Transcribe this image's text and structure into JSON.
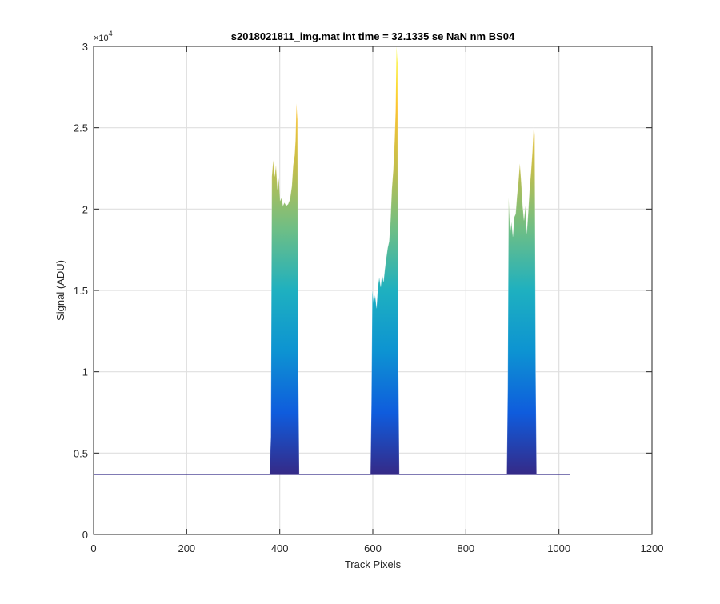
{
  "chart_data": {
    "type": "area",
    "title": "s2018021811_img.mat int time = 32.1335 se  NaN nm BS04",
    "xlabel": "Track Pixels",
    "ylabel": "Signal (ADU)",
    "y_exponent_label": "×10",
    "y_exponent_power": "4",
    "xlim": [
      0,
      1200
    ],
    "ylim": [
      0,
      3
    ],
    "xticks": [
      0,
      200,
      400,
      600,
      800,
      1000,
      1200
    ],
    "xtick_labels": [
      "0",
      "200",
      "400",
      "600",
      "800",
      "1000",
      "1200"
    ],
    "yticks": [
      0,
      0.5,
      1,
      1.5,
      2,
      2.5,
      3
    ],
    "ytick_labels": [
      "0",
      "0.5",
      "1",
      "1.5",
      "2",
      "2.5",
      "3"
    ],
    "grid": true,
    "baseline": 0.37,
    "x_extent": [
      1,
      1024
    ],
    "colormap": [
      "#352a87",
      "#0f5cdd",
      "#0d93d2",
      "#1eb0c0",
      "#6dbe86",
      "#c2be4c",
      "#fcc330",
      "#f9fb0e"
    ],
    "series": [
      {
        "values": [
          [
            378,
            0.37
          ],
          [
            381,
            0.6
          ],
          [
            383,
            2.2
          ],
          [
            386,
            2.3
          ],
          [
            389,
            2.2
          ],
          [
            392,
            2.27
          ],
          [
            395,
            2.12
          ],
          [
            398,
            2.19
          ],
          [
            401,
            2.05
          ],
          [
            404,
            2.07
          ],
          [
            407,
            2.02
          ],
          [
            410,
            2.04
          ],
          [
            414,
            2.02
          ],
          [
            418,
            2.03
          ],
          [
            422,
            2.06
          ],
          [
            426,
            2.14
          ],
          [
            429,
            2.27
          ],
          [
            432,
            2.33
          ],
          [
            434,
            2.42
          ],
          [
            436,
            2.65
          ],
          [
            438,
            2.55
          ],
          [
            440,
            1.0
          ],
          [
            442,
            0.37
          ]
        ]
      },
      {
        "values": [
          [
            595,
            0.37
          ],
          [
            597,
            0.8
          ],
          [
            599,
            1.5
          ],
          [
            602,
            1.42
          ],
          [
            605,
            1.47
          ],
          [
            608,
            1.39
          ],
          [
            611,
            1.52
          ],
          [
            614,
            1.58
          ],
          [
            617,
            1.52
          ],
          [
            620,
            1.6
          ],
          [
            623,
            1.55
          ],
          [
            626,
            1.63
          ],
          [
            629,
            1.7
          ],
          [
            632,
            1.76
          ],
          [
            635,
            1.8
          ],
          [
            638,
            1.92
          ],
          [
            641,
            2.12
          ],
          [
            644,
            2.24
          ],
          [
            647,
            2.42
          ],
          [
            649,
            2.6
          ],
          [
            651,
            3.0
          ],
          [
            653,
            2.9
          ],
          [
            655,
            1.0
          ],
          [
            657,
            0.37
          ]
        ]
      },
      {
        "values": [
          [
            888,
            0.37
          ],
          [
            890,
            0.9
          ],
          [
            892,
            2.07
          ],
          [
            895,
            1.85
          ],
          [
            898,
            1.92
          ],
          [
            901,
            1.83
          ],
          [
            904,
            1.95
          ],
          [
            907,
            1.97
          ],
          [
            910,
            2.08
          ],
          [
            913,
            2.17
          ],
          [
            916,
            2.28
          ],
          [
            919,
            2.16
          ],
          [
            922,
            2.02
          ],
          [
            925,
            1.93
          ],
          [
            928,
            2.02
          ],
          [
            931,
            1.85
          ],
          [
            934,
            1.98
          ],
          [
            937,
            2.12
          ],
          [
            940,
            2.23
          ],
          [
            943,
            2.35
          ],
          [
            946,
            2.52
          ],
          [
            948,
            2.45
          ],
          [
            950,
            1.0
          ],
          [
            952,
            0.37
          ]
        ]
      }
    ]
  }
}
